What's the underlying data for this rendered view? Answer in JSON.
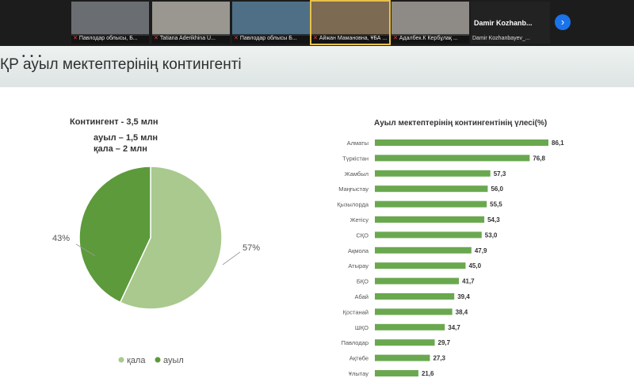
{
  "meeting": {
    "participants": [
      {
        "caption": "Павлодар облысы, Б...",
        "video_bg": "#6a6e72",
        "active": false
      },
      {
        "caption": "Tatiana Aderikhina U...",
        "video_bg": "#9a9690",
        "active": false
      },
      {
        "caption": "Павлодар облысы Б...",
        "video_bg": "#4f6f86",
        "active": false
      },
      {
        "caption": "Айжан Мамановна, ҰБА ...",
        "video_bg": "#7d6a52",
        "active": true
      },
      {
        "caption": "Адалбек.К Кербұлақ ...",
        "video_bg": "#8e8a86",
        "active": false
      }
    ],
    "name_only": {
      "name": "Damir  Kozhanb...",
      "caption": "Damir Kozhanbayev_..."
    },
    "next_icon": "chevron-right-icon"
  },
  "slide": {
    "title": "ҚР ауыл мектептерінің контингенті",
    "menu_dots": "• • •",
    "pie": {
      "heading": "Контингент - 3,5 млн",
      "line2": "ауыл – 1,5 млн",
      "line3": "қала  – 2 млн",
      "label_big": "57%",
      "label_small": "43%",
      "legend": [
        {
          "label": "қала",
          "color": "#a9c98e"
        },
        {
          "label": "ауыл",
          "color": "#5c9a3b"
        }
      ]
    },
    "chart_title": "Ауыл мектептерінің контингентінің үлесі(%)"
  },
  "chart_data": [
    {
      "type": "pie",
      "categories": [
        "қала",
        "ауыл"
      ],
      "values": [
        57,
        43
      ],
      "colors": [
        "#a9c98e",
        "#5c9a3b"
      ],
      "title": "Контингент - 3,5 млн",
      "legend": "bottom"
    },
    {
      "type": "bar",
      "orientation": "horizontal",
      "title": "Ауыл мектептерінің контингентінің үлесі(%)",
      "categories": [
        "Алматы",
        "Түркістан",
        "Жамбыл",
        "Маңғыстау",
        "Қызылорда",
        "Жетісу",
        "СҚО",
        "Ақмола",
        "Атырау",
        "БҚО",
        "Абай",
        "Қостанай",
        "ШҚО",
        "Павлодар",
        "Ақтөбе",
        "Ұлытау"
      ],
      "values": [
        86.1,
        76.8,
        57.3,
        56.0,
        55.5,
        54.3,
        53.0,
        47.9,
        45.0,
        41.7,
        39.4,
        38.4,
        34.7,
        29.7,
        27.3,
        21.6
      ],
      "value_labels": [
        "86,1",
        "76,8",
        "57,3",
        "56,0",
        "55,5",
        "54,3",
        "53,0",
        "47,9",
        "45,0",
        "41,7",
        "39,4",
        "38,4",
        "34,7",
        "29,7",
        "27,3",
        "21,6"
      ],
      "color": "#6aa84f",
      "xlim": [
        0,
        100
      ],
      "grid": false
    }
  ]
}
